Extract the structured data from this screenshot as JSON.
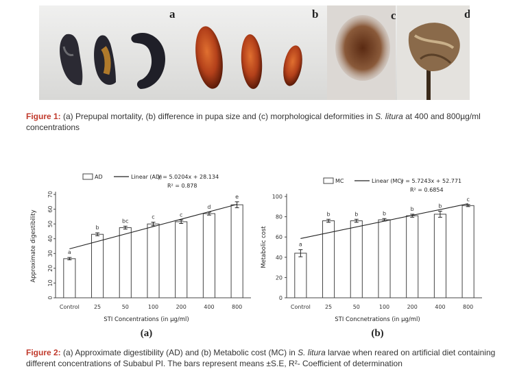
{
  "figure1": {
    "panel_letters": [
      "a",
      "b",
      "c",
      "d"
    ],
    "caption_label": "Figure 1:",
    "caption_pre": " (a) Prepupal mortality, (b) difference in pupa size and (c) morphological deformities in ",
    "caption_species": "S. litura",
    "caption_post": " at 400 and 800µg/ml concentrations"
  },
  "figure2": {
    "caption_label": "Figure 2:",
    "caption_pre": " (a) Approximate digestibility (AD) and (b) Metabolic cost (MC) in ",
    "caption_species": "S. litura",
    "caption_post": " larvae when reared on artificial diet containing different concentrations of Subabul PI. The bars represent means ±S.E, R²- Coefficient of determination"
  },
  "chart_data": [
    {
      "type": "bar",
      "panel": "(a)",
      "categories": [
        "Control",
        "25",
        "50",
        "100",
        "200",
        "400",
        "800"
      ],
      "values": [
        26.5,
        43,
        47.5,
        50,
        51.5,
        57,
        63
      ],
      "errors": [
        0.8,
        1.0,
        1.0,
        1.2,
        1.2,
        1.0,
        2.0
      ],
      "letters": [
        "a",
        "b",
        "bc",
        "c",
        "c",
        "d",
        "e"
      ],
      "ylabel": "Approximate digestibility",
      "xlabel": "STI Concentrations (in µg/ml)",
      "ylim": [
        0,
        70
      ],
      "yticks": [
        0,
        10,
        20,
        30,
        40,
        50,
        60,
        70
      ],
      "legend_bar": "AD",
      "legend_line": "Linear (AD)",
      "equation": "y = 5.0204x + 28.134",
      "r2": "R² = 0.878",
      "trend": {
        "slope": 5.0204,
        "intercept": 28.134
      }
    },
    {
      "type": "bar",
      "panel": "(b)",
      "categories": [
        "Control",
        "25",
        "50",
        "100",
        "200",
        "400",
        "800"
      ],
      "values": [
        44,
        76,
        76,
        77,
        81,
        82.5,
        91
      ],
      "errors": [
        3.5,
        1.5,
        1.5,
        1.2,
        1.5,
        3.0,
        1.0
      ],
      "letters": [
        "a",
        "b",
        "b",
        "b",
        "b",
        "b",
        "c"
      ],
      "ylabel": "Metabolic cost",
      "xlabel": "STI Concnetrations (in µg/ml)",
      "ylim": [
        0,
        100
      ],
      "yticks": [
        0,
        20,
        40,
        60,
        80,
        100
      ],
      "legend_bar": "MC",
      "legend_line": "Linear (MC)",
      "equation": "y = 5.7243x + 52.771",
      "r2": "R² = 0.6854",
      "trend": {
        "slope": 5.7243,
        "intercept": 52.771
      }
    }
  ]
}
